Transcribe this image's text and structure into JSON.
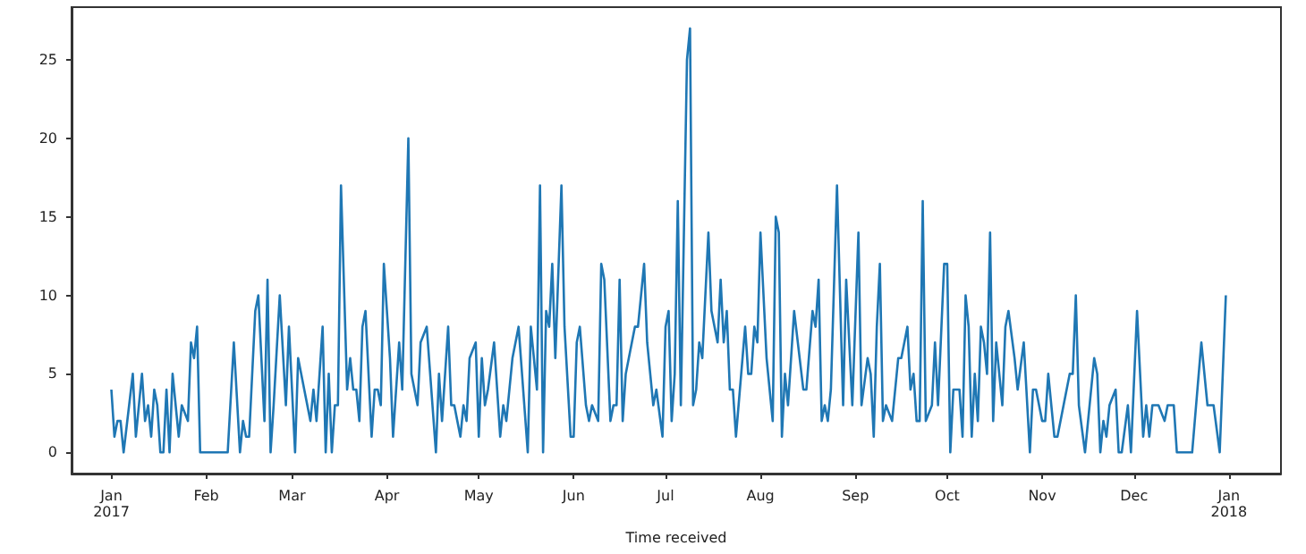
{
  "chart_data": {
    "type": "line",
    "xlabel": "Time received",
    "xlim": [
      "2016-12-19",
      "2018-01-18"
    ],
    "xticks": [
      {
        "value": "2017-01-01",
        "label": "Jan\n2017"
      },
      {
        "value": "2017-02-01",
        "label": "Feb"
      },
      {
        "value": "2017-03-01",
        "label": "Mar"
      },
      {
        "value": "2017-04-01",
        "label": "Apr"
      },
      {
        "value": "2017-05-01",
        "label": "May"
      },
      {
        "value": "2017-06-01",
        "label": "Jun"
      },
      {
        "value": "2017-07-01",
        "label": "Jul"
      },
      {
        "value": "2017-08-01",
        "label": "Aug"
      },
      {
        "value": "2017-09-01",
        "label": "Sep"
      },
      {
        "value": "2017-10-01",
        "label": "Oct"
      },
      {
        "value": "2017-11-01",
        "label": "Nov"
      },
      {
        "value": "2017-12-01",
        "label": "Dec"
      },
      {
        "value": "2018-01-01",
        "label": "Jan\n2018"
      }
    ],
    "ylim": [
      -1.35,
      28.35
    ],
    "yticks": [
      0,
      5,
      10,
      15,
      20,
      25
    ],
    "grid": false,
    "series": [
      {
        "color": "#1f77b4",
        "x": [
          "2017-01-01",
          "2017-01-02",
          "2017-01-03",
          "2017-01-04",
          "2017-01-05",
          "2017-01-08",
          "2017-01-09",
          "2017-01-11",
          "2017-01-12",
          "2017-01-13",
          "2017-01-14",
          "2017-01-15",
          "2017-01-16",
          "2017-01-17",
          "2017-01-18",
          "2017-01-19",
          "2017-01-20",
          "2017-01-21",
          "2017-01-23",
          "2017-01-24",
          "2017-01-26",
          "2017-01-27",
          "2017-01-28",
          "2017-01-29",
          "2017-01-30",
          "2017-02-08",
          "2017-02-10",
          "2017-02-12",
          "2017-02-13",
          "2017-02-14",
          "2017-02-15",
          "2017-02-17",
          "2017-02-18",
          "2017-02-20",
          "2017-02-21",
          "2017-02-22",
          "2017-02-23",
          "2017-02-25",
          "2017-02-27",
          "2017-02-28",
          "2017-03-02",
          "2017-03-03",
          "2017-03-05",
          "2017-03-07",
          "2017-03-08",
          "2017-03-09",
          "2017-03-11",
          "2017-03-12",
          "2017-03-13",
          "2017-03-14",
          "2017-03-15",
          "2017-03-16",
          "2017-03-17",
          "2017-03-19",
          "2017-03-20",
          "2017-03-21",
          "2017-03-22",
          "2017-03-23",
          "2017-03-24",
          "2017-03-25",
          "2017-03-27",
          "2017-03-28",
          "2017-03-29",
          "2017-03-30",
          "2017-03-31",
          "2017-04-02",
          "2017-04-03",
          "2017-04-05",
          "2017-04-06",
          "2017-04-08",
          "2017-04-09",
          "2017-04-11",
          "2017-04-12",
          "2017-04-14",
          "2017-04-17",
          "2017-04-18",
          "2017-04-19",
          "2017-04-21",
          "2017-04-22",
          "2017-04-23",
          "2017-04-25",
          "2017-04-26",
          "2017-04-27",
          "2017-04-28",
          "2017-04-30",
          "2017-05-01",
          "2017-05-02",
          "2017-05-03",
          "2017-05-04",
          "2017-05-06",
          "2017-05-08",
          "2017-05-09",
          "2017-05-10",
          "2017-05-12",
          "2017-05-14",
          "2017-05-17",
          "2017-05-18",
          "2017-05-20",
          "2017-05-21",
          "2017-05-22",
          "2017-05-23",
          "2017-05-24",
          "2017-05-25",
          "2017-05-26",
          "2017-05-28",
          "2017-05-29",
          "2017-05-31",
          "2017-06-01",
          "2017-06-02",
          "2017-06-03",
          "2017-06-05",
          "2017-06-06",
          "2017-06-07",
          "2017-06-09",
          "2017-06-10",
          "2017-06-11",
          "2017-06-13",
          "2017-06-14",
          "2017-06-15",
          "2017-06-16",
          "2017-06-17",
          "2017-06-18",
          "2017-06-20",
          "2017-06-21",
          "2017-06-22",
          "2017-06-24",
          "2017-06-25",
          "2017-06-26",
          "2017-06-27",
          "2017-06-28",
          "2017-06-30",
          "2017-07-01",
          "2017-07-02",
          "2017-07-03",
          "2017-07-04",
          "2017-07-05",
          "2017-07-06",
          "2017-07-08",
          "2017-07-09",
          "2017-07-10",
          "2017-07-11",
          "2017-07-12",
          "2017-07-13",
          "2017-07-15",
          "2017-07-16",
          "2017-07-17",
          "2017-07-18",
          "2017-07-19",
          "2017-07-20",
          "2017-07-21",
          "2017-07-22",
          "2017-07-23",
          "2017-07-24",
          "2017-07-27",
          "2017-07-28",
          "2017-07-29",
          "2017-07-30",
          "2017-07-31",
          "2017-08-01",
          "2017-08-03",
          "2017-08-05",
          "2017-08-06",
          "2017-08-07",
          "2017-08-08",
          "2017-08-09",
          "2017-08-10",
          "2017-08-12",
          "2017-08-15",
          "2017-08-16",
          "2017-08-18",
          "2017-08-19",
          "2017-08-20",
          "2017-08-21",
          "2017-08-22",
          "2017-08-23",
          "2017-08-24",
          "2017-08-26",
          "2017-08-28",
          "2017-08-29",
          "2017-08-31",
          "2017-09-02",
          "2017-09-03",
          "2017-09-05",
          "2017-09-06",
          "2017-09-07",
          "2017-09-08",
          "2017-09-09",
          "2017-09-10",
          "2017-09-11",
          "2017-09-13",
          "2017-09-15",
          "2017-09-16",
          "2017-09-18",
          "2017-09-19",
          "2017-09-20",
          "2017-09-21",
          "2017-09-22",
          "2017-09-23",
          "2017-09-24",
          "2017-09-26",
          "2017-09-27",
          "2017-09-28",
          "2017-09-30",
          "2017-10-01",
          "2017-10-02",
          "2017-10-03",
          "2017-10-05",
          "2017-10-06",
          "2017-10-07",
          "2017-10-08",
          "2017-10-09",
          "2017-10-10",
          "2017-10-11",
          "2017-10-12",
          "2017-10-13",
          "2017-10-14",
          "2017-10-15",
          "2017-10-16",
          "2017-10-17",
          "2017-10-19",
          "2017-10-20",
          "2017-10-21",
          "2017-10-23",
          "2017-10-24",
          "2017-10-26",
          "2017-10-28",
          "2017-10-29",
          "2017-10-30",
          "2017-11-01",
          "2017-11-02",
          "2017-11-03",
          "2017-11-04",
          "2017-11-05",
          "2017-11-06",
          "2017-11-08",
          "2017-11-10",
          "2017-11-11",
          "2017-11-12",
          "2017-11-13",
          "2017-11-15",
          "2017-11-16",
          "2017-11-18",
          "2017-11-19",
          "2017-11-20",
          "2017-11-21",
          "2017-11-22",
          "2017-11-23",
          "2017-11-25",
          "2017-11-26",
          "2017-11-27",
          "2017-11-29",
          "2017-11-30",
          "2017-12-02",
          "2017-12-04",
          "2017-12-05",
          "2017-12-06",
          "2017-12-07",
          "2017-12-08",
          "2017-12-09",
          "2017-12-11",
          "2017-12-12",
          "2017-12-14",
          "2017-12-15",
          "2017-12-20",
          "2017-12-23",
          "2017-12-25",
          "2017-12-27",
          "2017-12-29",
          "2017-12-31"
        ],
        "values": [
          4,
          1,
          2,
          2,
          0,
          5,
          1,
          5,
          2,
          3,
          1,
          4,
          3,
          0,
          0,
          4,
          0,
          5,
          1,
          3,
          2,
          7,
          6,
          8,
          0,
          0,
          7,
          0,
          2,
          1,
          1,
          9,
          10,
          2,
          11,
          0,
          3,
          10,
          3,
          8,
          0,
          6,
          4,
          2,
          4,
          2,
          8,
          0,
          5,
          0,
          3,
          3,
          17,
          4,
          6,
          4,
          4,
          2,
          8,
          9,
          1,
          4,
          4,
          3,
          12,
          6,
          1,
          7,
          4,
          20,
          5,
          3,
          7,
          8,
          0,
          5,
          2,
          8,
          3,
          3,
          1,
          3,
          2,
          6,
          7,
          1,
          6,
          3,
          4,
          7,
          1,
          3,
          2,
          6,
          8,
          0,
          8,
          4,
          17,
          0,
          9,
          8,
          12,
          6,
          17,
          8,
          1,
          1,
          7,
          8,
          3,
          2,
          3,
          2,
          12,
          11,
          2,
          3,
          3,
          11,
          2,
          5,
          7,
          8,
          8,
          12,
          7,
          5,
          3,
          4,
          1,
          8,
          9,
          2,
          5,
          16,
          3,
          25,
          27,
          3,
          4,
          7,
          6,
          14,
          9,
          8,
          7,
          11,
          7,
          9,
          4,
          4,
          1,
          8,
          5,
          5,
          8,
          7,
          14,
          6,
          2,
          15,
          14,
          1,
          5,
          3,
          9,
          4,
          4,
          9,
          8,
          11,
          2,
          3,
          2,
          4,
          17,
          3,
          11,
          3,
          14,
          3,
          6,
          5,
          1,
          8,
          12,
          2,
          3,
          2,
          6,
          6,
          8,
          4,
          5,
          2,
          2,
          16,
          2,
          3,
          7,
          3,
          12,
          12,
          0,
          4,
          4,
          1,
          10,
          8,
          1,
          5,
          2,
          8,
          7,
          5,
          14,
          2,
          7,
          3,
          8,
          9,
          6,
          4,
          7,
          0,
          4,
          4,
          2,
          2,
          5,
          3,
          1,
          1,
          3,
          5,
          5,
          10,
          3,
          0,
          2,
          6,
          5,
          0,
          2,
          1,
          3,
          4,
          0,
          0,
          3,
          0,
          9,
          1,
          3,
          1,
          3,
          3,
          3,
          2,
          3,
          3,
          0,
          0,
          7,
          3,
          3,
          0,
          10
        ]
      }
    ]
  }
}
